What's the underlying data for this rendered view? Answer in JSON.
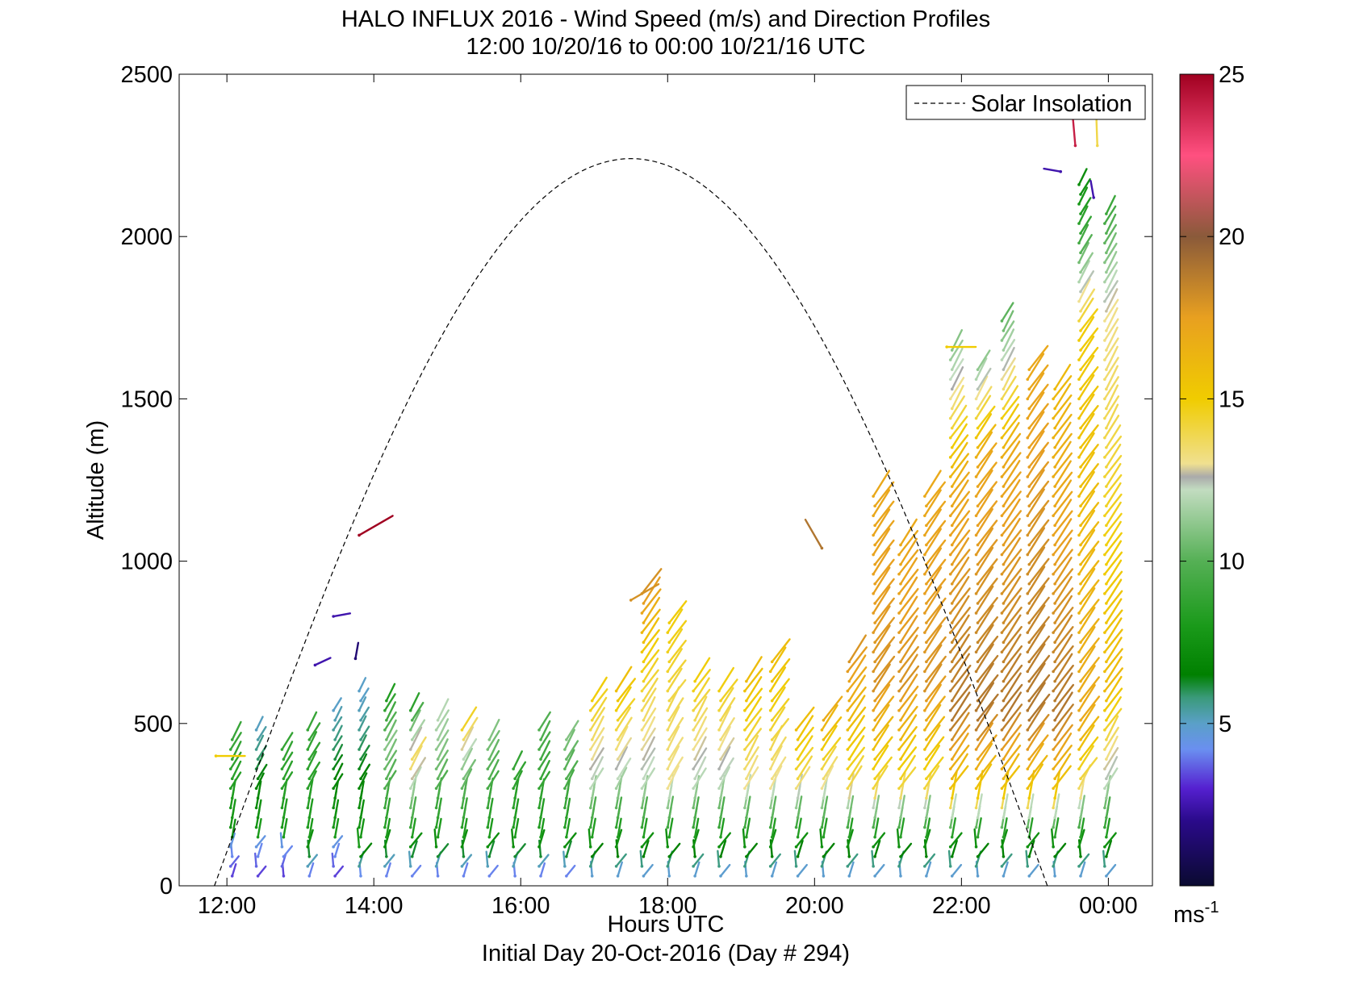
{
  "chart_data": {
    "type": "quiver",
    "title": "HALO INFLUX 2016 - Wind Speed (m/s) and Direction Profiles",
    "subtitle": "12:00 10/20/16 to 00:00 10/21/16  UTC",
    "xlabel": "Hours UTC",
    "xlabel2": "Initial Day 20-Oct-2016 (Day # 294)",
    "ylabel": "Altitude (m)",
    "xlim": [
      11.35,
      24.6
    ],
    "ylim": [
      0,
      2500
    ],
    "x_ticks": [
      12,
      14,
      16,
      18,
      20,
      22,
      24
    ],
    "x_tick_labels": [
      "12:00",
      "14:00",
      "16:00",
      "18:00",
      "20:00",
      "22:00",
      "00:00"
    ],
    "y_ticks": [
      0,
      500,
      1000,
      1500,
      2000,
      2500
    ],
    "y_tick_labels": [
      "0",
      "500",
      "1000",
      "1500",
      "2000",
      "2500"
    ],
    "legend": {
      "position": "top-right",
      "entries": [
        {
          "label": "Solar Insolation",
          "style": "dashed",
          "color": "#000000"
        }
      ]
    },
    "colorbar": {
      "min": 0,
      "max": 25,
      "ticks": [
        5,
        10,
        15,
        20,
        25
      ],
      "tick_labels": [
        "5",
        "10",
        "15",
        "20",
        "25"
      ],
      "unit_label": "ms",
      "unit_exponent": "-1",
      "stops": [
        {
          "v": 0,
          "c": "#0a0a30"
        },
        {
          "v": 2,
          "c": "#2a0a8a"
        },
        {
          "v": 3,
          "c": "#5520d0"
        },
        {
          "v": 4.2,
          "c": "#6a8ff0"
        },
        {
          "v": 5,
          "c": "#5aa0c8"
        },
        {
          "v": 5.8,
          "c": "#3a9a7a"
        },
        {
          "v": 6.5,
          "c": "#008000"
        },
        {
          "v": 8,
          "c": "#1a9a1a"
        },
        {
          "v": 10,
          "c": "#55b055"
        },
        {
          "v": 12.2,
          "c": "#c2dcc0"
        },
        {
          "v": 12.6,
          "c": "#aaaaaa"
        },
        {
          "v": 13,
          "c": "#f0e090"
        },
        {
          "v": 15,
          "c": "#f0cc00"
        },
        {
          "v": 17.5,
          "c": "#e8a020"
        },
        {
          "v": 20,
          "c": "#8a5a3a"
        },
        {
          "v": 22.5,
          "c": "#ff5080"
        },
        {
          "v": 25,
          "c": "#a00020"
        }
      ]
    },
    "solar_insolation_curve": {
      "style": "dashed",
      "start_hour": 11.83,
      "end_hour": 23.17,
      "peak_hour": 17.5,
      "peak_altitude": 2240
    },
    "wind_profiles": [
      {
        "t": 12.05,
        "top": 470,
        "speeds": [
          [
            0,
            3
          ],
          [
            120,
            4.5
          ],
          [
            150,
            7.5
          ],
          [
            420,
            9
          ]
        ]
      },
      {
        "t": 12.4,
        "top": 500,
        "speeds": [
          [
            0,
            3
          ],
          [
            120,
            4.5
          ],
          [
            150,
            8
          ],
          [
            490,
            5
          ]
        ]
      },
      {
        "t": 12.75,
        "top": 440,
        "speeds": [
          [
            0,
            3
          ],
          [
            120,
            4.5
          ],
          [
            150,
            8
          ],
          [
            440,
            9
          ]
        ]
      },
      {
        "t": 13.1,
        "top": 480,
        "speeds": [
          [
            0,
            3
          ],
          [
            140,
            8
          ],
          [
            480,
            9
          ]
        ]
      },
      {
        "t": 13.45,
        "top": 560,
        "speeds": [
          [
            0,
            3
          ],
          [
            120,
            4.5
          ],
          [
            150,
            8
          ],
          [
            540,
            5
          ]
        ]
      },
      {
        "t": 13.8,
        "top": 600,
        "speeds": [
          [
            0,
            3
          ],
          [
            120,
            8
          ],
          [
            560,
            5
          ]
        ]
      },
      {
        "t": 14.15,
        "top": 580,
        "speeds": [
          [
            0,
            3
          ],
          [
            140,
            8
          ],
          [
            420,
            11
          ],
          [
            580,
            8
          ]
        ]
      },
      {
        "t": 14.5,
        "top": 560,
        "speeds": [
          [
            0,
            3
          ],
          [
            140,
            8
          ],
          [
            380,
            14
          ],
          [
            560,
            8
          ]
        ]
      },
      {
        "t": 14.85,
        "top": 520,
        "speeds": [
          [
            0,
            3
          ],
          [
            140,
            8
          ],
          [
            400,
            11
          ],
          [
            520,
            12
          ]
        ]
      },
      {
        "t": 15.2,
        "top": 500,
        "speeds": [
          [
            0,
            3
          ],
          [
            140,
            8
          ],
          [
            350,
            11
          ],
          [
            500,
            15
          ]
        ]
      },
      {
        "t": 15.55,
        "top": 460,
        "speeds": [
          [
            0,
            3
          ],
          [
            140,
            8
          ],
          [
            460,
            11
          ]
        ]
      },
      {
        "t": 15.9,
        "top": 380,
        "speeds": [
          [
            0,
            3
          ],
          [
            140,
            8
          ],
          [
            380,
            9
          ]
        ]
      },
      {
        "t": 16.25,
        "top": 500,
        "speeds": [
          [
            0,
            3
          ],
          [
            140,
            8
          ],
          [
            500,
            10
          ]
        ]
      },
      {
        "t": 16.6,
        "top": 460,
        "speeds": [
          [
            0,
            3
          ],
          [
            140,
            8
          ],
          [
            460,
            11
          ]
        ]
      },
      {
        "t": 16.95,
        "top": 580,
        "speeds": [
          [
            0,
            4
          ],
          [
            140,
            8
          ],
          [
            300,
            12
          ],
          [
            580,
            15
          ]
        ]
      },
      {
        "t": 17.3,
        "top": 620,
        "speeds": [
          [
            0,
            4
          ],
          [
            140,
            8
          ],
          [
            320,
            12
          ],
          [
            620,
            16
          ]
        ]
      },
      {
        "t": 17.65,
        "top": 900,
        "speeds": [
          [
            0,
            4
          ],
          [
            140,
            8
          ],
          [
            300,
            12
          ],
          [
            700,
            15
          ],
          [
            900,
            18
          ]
        ]
      },
      {
        "t": 18.0,
        "top": 820,
        "speeds": [
          [
            0,
            4
          ],
          [
            140,
            8
          ],
          [
            300,
            13
          ],
          [
            820,
            15
          ]
        ]
      },
      {
        "t": 18.35,
        "top": 640,
        "speeds": [
          [
            0,
            4
          ],
          [
            140,
            8
          ],
          [
            300,
            12
          ],
          [
            640,
            15
          ]
        ]
      },
      {
        "t": 18.7,
        "top": 620,
        "speeds": [
          [
            0,
            4
          ],
          [
            140,
            8
          ],
          [
            300,
            12
          ],
          [
            620,
            15
          ]
        ]
      },
      {
        "t": 19.05,
        "top": 640,
        "speeds": [
          [
            0,
            4
          ],
          [
            140,
            8
          ],
          [
            300,
            13
          ],
          [
            640,
            16
          ]
        ]
      },
      {
        "t": 19.4,
        "top": 700,
        "speeds": [
          [
            0,
            4
          ],
          [
            140,
            8
          ],
          [
            300,
            13
          ],
          [
            700,
            16
          ]
        ]
      },
      {
        "t": 19.75,
        "top": 500,
        "speeds": [
          [
            0,
            4
          ],
          [
            140,
            8
          ],
          [
            320,
            14
          ],
          [
            500,
            16
          ]
        ]
      },
      {
        "t": 20.1,
        "top": 520,
        "speeds": [
          [
            0,
            4
          ],
          [
            140,
            8
          ],
          [
            300,
            13
          ],
          [
            520,
            17
          ]
        ]
      },
      {
        "t": 20.45,
        "top": 700,
        "speeds": [
          [
            0,
            4
          ],
          [
            140,
            8
          ],
          [
            300,
            14
          ],
          [
            700,
            18
          ]
        ]
      },
      {
        "t": 20.8,
        "top": 1220,
        "speeds": [
          [
            0,
            4
          ],
          [
            140,
            8
          ],
          [
            280,
            14
          ],
          [
            600,
            18
          ],
          [
            1220,
            17
          ]
        ]
      },
      {
        "t": 21.15,
        "top": 1050,
        "speeds": [
          [
            0,
            4
          ],
          [
            140,
            8
          ],
          [
            280,
            14
          ],
          [
            600,
            18
          ],
          [
            1050,
            17
          ]
        ]
      },
      {
        "t": 21.5,
        "top": 1200,
        "speeds": [
          [
            0,
            4
          ],
          [
            140,
            8
          ],
          [
            280,
            14
          ],
          [
            600,
            18
          ],
          [
            1200,
            17
          ]
        ]
      },
      {
        "t": 21.85,
        "top": 1650,
        "speeds": [
          [
            0,
            4
          ],
          [
            140,
            8
          ],
          [
            260,
            15
          ],
          [
            500,
            19
          ],
          [
            1200,
            17
          ],
          [
            1650,
            11
          ]
        ]
      },
      {
        "t": 22.2,
        "top": 1600,
        "speeds": [
          [
            0,
            4
          ],
          [
            140,
            8
          ],
          [
            260,
            15
          ],
          [
            500,
            19
          ],
          [
            1300,
            17
          ],
          [
            1600,
            11
          ]
        ]
      },
      {
        "t": 22.55,
        "top": 1750,
        "speeds": [
          [
            0,
            4
          ],
          [
            140,
            8
          ],
          [
            260,
            15
          ],
          [
            500,
            19
          ],
          [
            1300,
            17
          ],
          [
            1750,
            10
          ]
        ]
      },
      {
        "t": 22.9,
        "top": 1600,
        "speeds": [
          [
            0,
            4
          ],
          [
            140,
            8
          ],
          [
            260,
            15
          ],
          [
            500,
            19
          ],
          [
            1600,
            17
          ]
        ]
      },
      {
        "t": 23.25,
        "top": 1530,
        "speeds": [
          [
            0,
            4
          ],
          [
            140,
            8
          ],
          [
            260,
            15
          ],
          [
            500,
            19
          ],
          [
            1530,
            16
          ]
        ]
      },
      {
        "t": 23.6,
        "top": 2180,
        "speeds": [
          [
            0,
            4
          ],
          [
            140,
            8
          ],
          [
            260,
            13
          ],
          [
            500,
            17
          ],
          [
            1700,
            15
          ],
          [
            2000,
            9
          ],
          [
            2180,
            7
          ]
        ]
      },
      {
        "t": 23.95,
        "top": 2080,
        "speeds": [
          [
            0,
            4
          ],
          [
            140,
            8
          ],
          [
            300,
            12
          ],
          [
            600,
            16
          ],
          [
            1750,
            13
          ],
          [
            2080,
            9
          ]
        ]
      }
    ],
    "isolated_vectors": [
      {
        "t": 11.85,
        "alt": 400,
        "speed": 15
      },
      {
        "t": 13.8,
        "alt": 1080,
        "speed": 25
      },
      {
        "t": 13.45,
        "alt": 830,
        "speed": 2.5
      },
      {
        "t": 13.2,
        "alt": 680,
        "speed": 2.5
      },
      {
        "t": 13.75,
        "alt": 700,
        "speed": 1.5
      },
      {
        "t": 17.5,
        "alt": 880,
        "speed": 18
      },
      {
        "t": 20.1,
        "alt": 1040,
        "speed": 19
      },
      {
        "t": 21.8,
        "alt": 1660,
        "speed": 15
      },
      {
        "t": 23.35,
        "alt": 2200,
        "speed": 2.5
      },
      {
        "t": 23.55,
        "alt": 2280,
        "speed": 24
      },
      {
        "t": 23.85,
        "alt": 2280,
        "speed": 14
      },
      {
        "t": 23.8,
        "alt": 2120,
        "speed": 2.5
      }
    ]
  }
}
